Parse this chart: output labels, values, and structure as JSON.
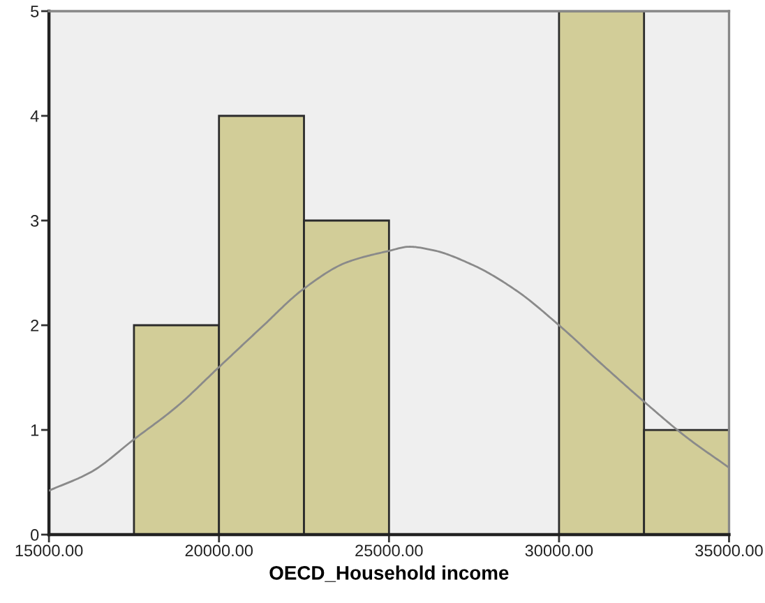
{
  "chart_data": {
    "type": "histogram",
    "xlabel": "OECD_Household income",
    "xlim": [
      15000,
      35000
    ],
    "xticks": [
      {
        "value": 15000,
        "label": "15000.00"
      },
      {
        "value": 20000,
        "label": "20000.00"
      },
      {
        "value": 25000,
        "label": "25000.00"
      },
      {
        "value": 30000,
        "label": "30000.00"
      },
      {
        "value": 35000,
        "label": "35000.00"
      }
    ],
    "ylim": [
      0,
      5
    ],
    "yticks": [
      0,
      1,
      2,
      3,
      4,
      5
    ],
    "grid": false,
    "legend": false,
    "series": [
      {
        "color": "#d2cd98",
        "bins": [
          17500,
          20000,
          22500,
          25000,
          27500,
          30000,
          32500,
          35000
        ],
        "values": [
          2,
          4,
          3,
          0,
          0,
          5,
          1
        ]
      },
      {
        "type": "line",
        "color": "#8a8a8a",
        "x": [
          15000,
          16250,
          17500,
          18750,
          20000,
          21250,
          22500,
          23750,
          25000,
          25600,
          26250,
          27500,
          28750,
          30000,
          31250,
          32500,
          33750,
          35000
        ],
        "values": [
          0.42,
          0.6,
          0.91,
          1.22,
          1.6,
          1.98,
          2.35,
          2.6,
          2.71,
          2.75,
          2.72,
          2.57,
          2.33,
          2.0,
          1.63,
          1.27,
          0.93,
          0.64
        ]
      }
    ]
  }
}
